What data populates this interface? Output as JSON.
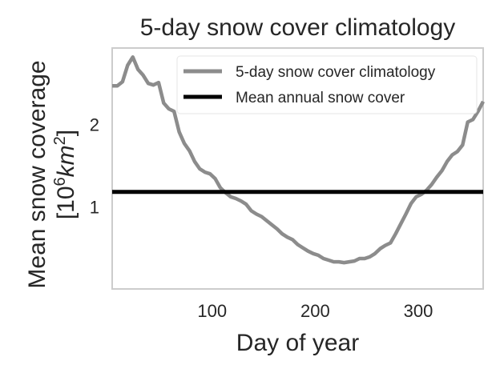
{
  "chart_data": {
    "type": "line",
    "title": "5-day snow cover climatology",
    "xlabel": "Day of year",
    "ylabel_line1": "Mean snow coverage",
    "ylabel_line2_base": "[10",
    "ylabel_line2_exp": "6",
    "ylabel_line2_unit": "km",
    "ylabel_line2_unit_exp": "2",
    "ylabel_line2_close": "]",
    "xlim": [
      3,
      363
    ],
    "ylim": [
      0.0,
      2.93
    ],
    "xticks": [
      100,
      200,
      300
    ],
    "yticks": [
      1,
      2
    ],
    "grid": false,
    "legend_position": "top-right",
    "series": [
      {
        "name": "5-day snow cover climatology",
        "color": "#8c8c8c",
        "x": [
          3,
          8,
          13,
          18,
          23,
          28,
          33,
          38,
          43,
          48,
          53,
          58,
          63,
          68,
          73,
          78,
          83,
          88,
          93,
          98,
          103,
          108,
          113,
          118,
          123,
          128,
          133,
          138,
          143,
          148,
          153,
          158,
          163,
          168,
          173,
          178,
          183,
          188,
          193,
          198,
          203,
          208,
          213,
          218,
          223,
          228,
          233,
          238,
          243,
          248,
          253,
          258,
          263,
          268,
          273,
          278,
          283,
          288,
          293,
          298,
          303,
          308,
          313,
          318,
          323,
          328,
          333,
          338,
          343,
          348,
          353,
          358,
          363
        ],
        "y": [
          2.47,
          2.47,
          2.52,
          2.72,
          2.82,
          2.67,
          2.6,
          2.5,
          2.48,
          2.51,
          2.26,
          2.19,
          2.16,
          1.91,
          1.77,
          1.68,
          1.55,
          1.46,
          1.42,
          1.4,
          1.34,
          1.23,
          1.17,
          1.12,
          1.1,
          1.07,
          1.03,
          0.95,
          0.91,
          0.88,
          0.83,
          0.78,
          0.73,
          0.67,
          0.63,
          0.6,
          0.54,
          0.5,
          0.46,
          0.43,
          0.41,
          0.37,
          0.35,
          0.33,
          0.33,
          0.32,
          0.33,
          0.34,
          0.37,
          0.37,
          0.39,
          0.43,
          0.49,
          0.53,
          0.56,
          0.67,
          0.79,
          0.91,
          1.04,
          1.12,
          1.15,
          1.2,
          1.27,
          1.36,
          1.44,
          1.55,
          1.63,
          1.67,
          1.75,
          2.03,
          2.06,
          2.16,
          2.28
        ]
      },
      {
        "name": "Mean annual snow cover",
        "color": "#000000",
        "x": [
          3,
          363
        ],
        "y": [
          1.18,
          1.18
        ]
      }
    ]
  }
}
